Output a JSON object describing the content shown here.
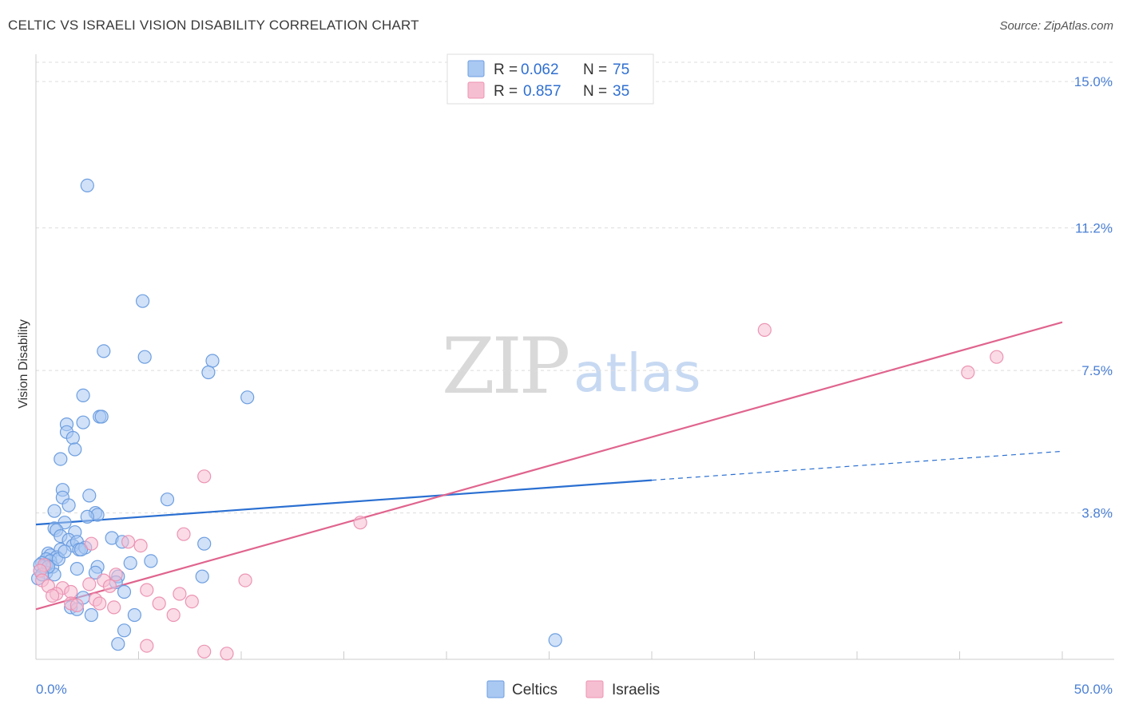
{
  "title": "CELTIC VS ISRAELI VISION DISABILITY CORRELATION CHART",
  "source": "Source: ZipAtlas.com",
  "watermark": {
    "left": "ZIP",
    "right": "atlas"
  },
  "colors": {
    "celtics_fill": "#a9c8f2",
    "celtics_stroke": "#6d9ee0",
    "celtics_line": "#2a6fd1",
    "israelis_fill": "#f6bed1",
    "israelis_stroke": "#ec94b3",
    "israelis_line": "#e0648e",
    "tick_text": "#4a7fd4",
    "grid": "#dddddd"
  },
  "legend": {
    "rows": [
      {
        "r_label": "R =",
        "r_value": "0.062",
        "n_label": "N =",
        "n_value": "75"
      },
      {
        "r_label": "R =",
        "r_value": "0.857",
        "n_label": "N =",
        "n_value": "35"
      }
    ]
  },
  "bottom_legend": [
    "Celtics",
    "Israelis"
  ],
  "chart_data": {
    "type": "scatter",
    "title": "CELTIC VS ISRAELI VISION DISABILITY CORRELATION CHART",
    "xlabel": "",
    "ylabel": "Vision Disability",
    "xlim": [
      0,
      50
    ],
    "ylim": [
      0,
      15.5
    ],
    "x_tick_labels": [
      "0.0%",
      "50.0%"
    ],
    "y_ticks": [
      3.8,
      7.5,
      11.2,
      15.0
    ],
    "y_tick_labels": [
      "3.8%",
      "7.5%",
      "11.2%",
      "15.0%"
    ],
    "legend_position": "top-center",
    "series": [
      {
        "name": "Celtics",
        "r": 0.062,
        "n": 75,
        "trend": {
          "x": [
            0,
            30
          ],
          "y": [
            3.5,
            4.65
          ],
          "dashed_extension": {
            "x": [
              30,
              50
            ],
            "y": [
              4.65,
              5.4
            ]
          }
        },
        "points": [
          [
            2.5,
            12.3
          ],
          [
            5.2,
            9.3
          ],
          [
            3.3,
            8.0
          ],
          [
            5.3,
            7.85
          ],
          [
            8.6,
            7.75
          ],
          [
            8.4,
            7.45
          ],
          [
            2.3,
            6.85
          ],
          [
            10.3,
            6.8
          ],
          [
            3.1,
            6.3
          ],
          [
            3.2,
            6.3
          ],
          [
            1.5,
            6.1
          ],
          [
            2.3,
            6.15
          ],
          [
            1.5,
            5.9
          ],
          [
            1.8,
            5.75
          ],
          [
            1.9,
            5.45
          ],
          [
            1.2,
            5.2
          ],
          [
            1.3,
            4.4
          ],
          [
            1.3,
            4.2
          ],
          [
            2.6,
            4.25
          ],
          [
            6.4,
            4.15
          ],
          [
            1.6,
            4.0
          ],
          [
            0.9,
            3.85
          ],
          [
            2.9,
            3.8
          ],
          [
            3.0,
            3.75
          ],
          [
            2.5,
            3.7
          ],
          [
            1.4,
            3.55
          ],
          [
            0.9,
            3.4
          ],
          [
            1.0,
            3.35
          ],
          [
            1.9,
            3.3
          ],
          [
            1.2,
            3.2
          ],
          [
            3.7,
            3.15
          ],
          [
            1.6,
            3.1
          ],
          [
            1.8,
            2.95
          ],
          [
            2.0,
            3.05
          ],
          [
            4.2,
            3.05
          ],
          [
            8.2,
            3.0
          ],
          [
            2.1,
            2.85
          ],
          [
            2.4,
            2.9
          ],
          [
            1.2,
            2.85
          ],
          [
            0.6,
            2.75
          ],
          [
            0.7,
            2.7
          ],
          [
            1.0,
            2.65
          ],
          [
            0.5,
            2.6
          ],
          [
            0.7,
            2.55
          ],
          [
            0.3,
            2.5
          ],
          [
            0.5,
            2.45
          ],
          [
            5.6,
            2.55
          ],
          [
            4.6,
            2.5
          ],
          [
            0.4,
            2.4
          ],
          [
            0.8,
            2.4
          ],
          [
            3.0,
            2.4
          ],
          [
            2.0,
            2.35
          ],
          [
            0.2,
            2.3
          ],
          [
            0.5,
            2.25
          ],
          [
            0.9,
            2.2
          ],
          [
            2.9,
            2.25
          ],
          [
            4.0,
            2.15
          ],
          [
            0.1,
            2.1
          ],
          [
            8.1,
            2.15
          ],
          [
            3.9,
            2.0
          ],
          [
            4.3,
            1.75
          ],
          [
            2.3,
            1.6
          ],
          [
            1.7,
            1.35
          ],
          [
            2.0,
            1.3
          ],
          [
            2.7,
            1.15
          ],
          [
            4.8,
            1.15
          ],
          [
            4.3,
            0.75
          ],
          [
            4.0,
            0.4
          ],
          [
            25.3,
            0.5
          ],
          [
            0.2,
            2.45
          ],
          [
            0.6,
            2.4
          ],
          [
            1.1,
            2.6
          ],
          [
            1.4,
            2.8
          ],
          [
            2.2,
            2.85
          ],
          [
            0.3,
            2.2
          ]
        ]
      },
      {
        "name": "Israelis",
        "r": 0.857,
        "n": 35,
        "trend": {
          "x": [
            0,
            50
          ],
          "y": [
            1.3,
            8.75
          ]
        },
        "points": [
          [
            35.5,
            8.55
          ],
          [
            46.8,
            7.85
          ],
          [
            45.4,
            7.45
          ],
          [
            8.2,
            4.75
          ],
          [
            15.8,
            3.55
          ],
          [
            7.2,
            3.25
          ],
          [
            2.7,
            3.0
          ],
          [
            4.5,
            3.05
          ],
          [
            5.1,
            2.95
          ],
          [
            0.4,
            2.45
          ],
          [
            0.2,
            2.3
          ],
          [
            3.9,
            2.2
          ],
          [
            0.3,
            2.05
          ],
          [
            10.2,
            2.05
          ],
          [
            3.3,
            2.05
          ],
          [
            2.6,
            1.95
          ],
          [
            0.6,
            1.9
          ],
          [
            3.6,
            1.9
          ],
          [
            1.3,
            1.85
          ],
          [
            5.4,
            1.8
          ],
          [
            1.7,
            1.75
          ],
          [
            1.0,
            1.7
          ],
          [
            7.0,
            1.7
          ],
          [
            0.8,
            1.65
          ],
          [
            2.9,
            1.55
          ],
          [
            7.6,
            1.5
          ],
          [
            1.7,
            1.45
          ],
          [
            6.0,
            1.45
          ],
          [
            3.1,
            1.45
          ],
          [
            2.0,
            1.4
          ],
          [
            3.8,
            1.35
          ],
          [
            6.7,
            1.15
          ],
          [
            5.4,
            0.35
          ],
          [
            8.2,
            0.2
          ],
          [
            9.3,
            0.15
          ]
        ]
      }
    ]
  }
}
